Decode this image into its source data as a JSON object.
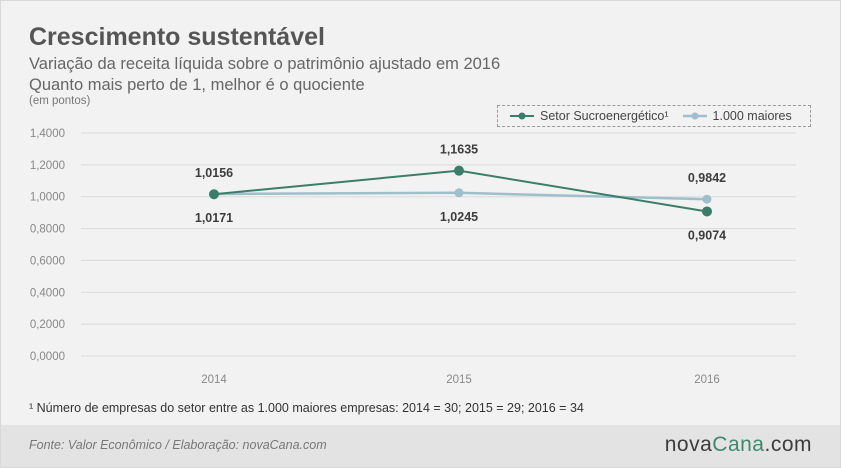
{
  "title": "Crescimento sustentável",
  "subtitle_line1": "Variação da receita líquida sobre o patrimônio ajustado em 2016",
  "subtitle_line2": "Quanto mais perto de 1, melhor é o quociente",
  "unit": "(em pontos)",
  "footnote": "¹ Número de empresas do setor entre as 1.000 maiores empresas: 2014 = 30; 2015 = 29; 2016 = 34",
  "source": "Fonte: Valor Econômico / Elaboração: novaCana.com",
  "logo": {
    "part1": "nova",
    "part2": "Cana",
    "part3": ".com"
  },
  "colors": {
    "sector": "#3a7d68",
    "top1000": "#9ebfcc",
    "grid": "#d9d9d9",
    "logo_green": "#3c8a6c"
  },
  "chart_data": {
    "type": "line",
    "categories": [
      "2014",
      "2015",
      "2016"
    ],
    "ylim": [
      0,
      1.4
    ],
    "yticks": [
      "1,4000",
      "1,2000",
      "1,0000",
      "0,8000",
      "0,6000",
      "0,4000",
      "0,2000",
      "0,0000"
    ],
    "ytick_values": [
      1.4,
      1.2,
      1.0,
      0.8,
      0.6,
      0.4,
      0.2,
      0.0
    ],
    "grid": true,
    "legend_position": "top-right",
    "series": [
      {
        "name": "Setor Sucroenergético¹",
        "values": [
          1.0156,
          1.1635,
          0.9074
        ],
        "labels": [
          "1,0156",
          "1,1635",
          "0,9074"
        ],
        "label_pos": [
          "above",
          "above",
          "below"
        ]
      },
      {
        "name": "1.000 maiores",
        "values": [
          1.0171,
          1.0245,
          0.9842
        ],
        "labels": [
          "1,0171",
          "1,0245",
          "0,9842"
        ],
        "label_pos": [
          "below",
          "below",
          "above"
        ]
      }
    ]
  }
}
